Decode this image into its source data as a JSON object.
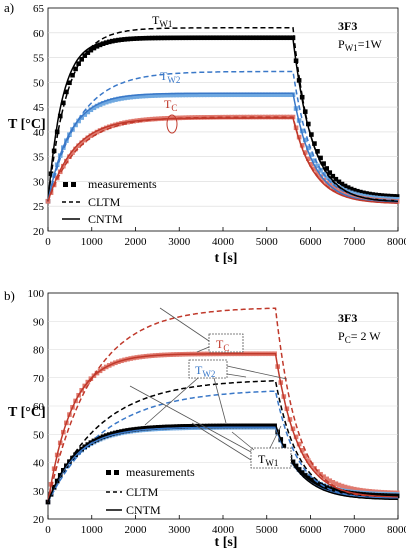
{
  "chart_data": [
    {
      "panel": "a)",
      "type": "line",
      "xlabel": "t [s]",
      "ylabel": "T [°C]",
      "xlim": [
        0,
        8000
      ],
      "ylim": [
        20,
        65
      ],
      "xticks": [
        0,
        1000,
        2000,
        3000,
        4000,
        5000,
        6000,
        7000,
        8000
      ],
      "yticks": [
        20,
        25,
        30,
        35,
        40,
        45,
        50,
        55,
        60,
        65
      ],
      "material": "3F3",
      "condition_main": "P",
      "condition_sub": "W1",
      "condition_value": "=1W",
      "legend": [
        "measurements",
        "CLTM",
        "CNTM"
      ],
      "curve_labels": [
        {
          "main": "T",
          "sub": "W1",
          "color": "#000000"
        },
        {
          "main": "T",
          "sub": "W2",
          "color": "#3a78c8"
        },
        {
          "main": "T",
          "sub": "C",
          "color": "#c0392b"
        }
      ],
      "series": [
        {
          "kind": "measurements",
          "color": "#000000",
          "start": 26,
          "end": 59,
          "tau": 380,
          "off": 5600,
          "final": 26.8,
          "tauc": 450
        },
        {
          "kind": "measurements",
          "color": "#6fa8e0",
          "start": 26,
          "end": 47.5,
          "tau": 500,
          "off": 5600,
          "final": 26.2,
          "tauc": 500
        },
        {
          "kind": "measurements",
          "color": "#e07a6f",
          "start": 26,
          "end": 43,
          "tau": 650,
          "off": 5600,
          "final": 25.8,
          "tauc": 520
        },
        {
          "kind": "CLTM",
          "color": "#000000",
          "start": 26,
          "end": 61,
          "tau": 450,
          "off": 5600,
          "final": 26,
          "tauc": 420
        },
        {
          "kind": "CLTM",
          "color": "#3a78c8",
          "start": 26,
          "end": 52.2,
          "tau": 700,
          "off": 5600,
          "final": 26,
          "tauc": 450
        },
        {
          "kind": "CLTM",
          "color": "#c0392b",
          "start": 26,
          "end": 43,
          "tau": 700,
          "off": 5600,
          "final": 25.6,
          "tauc": 480
        },
        {
          "kind": "CNTM",
          "color": "#000000",
          "start": 26,
          "end": 58.8,
          "tau": 330,
          "off": 5600,
          "final": 25.8,
          "tauc": 450
        },
        {
          "kind": "CNTM",
          "color": "#3a78c8",
          "start": 26,
          "end": 47.8,
          "tau": 500,
          "off": 5600,
          "final": 25.6,
          "tauc": 460
        },
        {
          "kind": "CNTM",
          "color": "#c0392b",
          "start": 26,
          "end": 42.8,
          "tau": 600,
          "off": 5600,
          "final": 25.5,
          "tauc": 480
        }
      ]
    },
    {
      "panel": "b)",
      "type": "line",
      "xlabel": "t [s]",
      "ylabel": "T [°C]",
      "xlim": [
        0,
        8000
      ],
      "ylim": [
        20,
        100
      ],
      "xticks": [
        0,
        1000,
        2000,
        3000,
        4000,
        5000,
        6000,
        7000,
        8000
      ],
      "yticks": [
        20,
        30,
        40,
        50,
        60,
        70,
        80,
        90,
        100
      ],
      "material": "3F3",
      "condition_main": "P",
      "condition_sub": "C",
      "condition_value": "= 2 W",
      "legend": [
        "measurements",
        "CLTM",
        "CNTM"
      ],
      "curve_labels": [
        {
          "main": "T",
          "sub": "C",
          "color": "#c0392b"
        },
        {
          "main": "T",
          "sub": "W2",
          "color": "#3a78c8"
        },
        {
          "main": "T",
          "sub": "W1",
          "color": "#000000"
        }
      ],
      "series": [
        {
          "kind": "measurements",
          "color": "#e07a6f",
          "start": 26,
          "end": 78.5,
          "tau": 550,
          "off": 5200,
          "final": 29,
          "tauc": 520
        },
        {
          "kind": "measurements",
          "color": "#6fa8e0",
          "start": 26,
          "end": 52.5,
          "tau": 650,
          "off": 5200,
          "final": 28.5,
          "tauc": 560
        },
        {
          "kind": "measurements",
          "color": "#000000",
          "start": 26,
          "end": 53,
          "tau": 650,
          "off": 5200,
          "final": 28,
          "tauc": 560
        },
        {
          "kind": "CLTM",
          "color": "#c0392b",
          "start": 26,
          "end": 95,
          "tau": 1000,
          "off": 5200,
          "final": 27,
          "tauc": 500
        },
        {
          "kind": "CLTM",
          "color": "#000000",
          "start": 26,
          "end": 69.5,
          "tau": 1200,
          "off": 5200,
          "final": 27,
          "tauc": 520
        },
        {
          "kind": "CLTM",
          "color": "#3a78c8",
          "start": 26,
          "end": 66,
          "tau": 1300,
          "off": 5200,
          "final": 27,
          "tauc": 520
        },
        {
          "kind": "CNTM",
          "color": "#c0392b",
          "start": 26,
          "end": 78.5,
          "tau": 550,
          "off": 5200,
          "final": 27.5,
          "tauc": 520
        },
        {
          "kind": "CNTM",
          "color": "#3a78c8",
          "start": 26,
          "end": 52.5,
          "tau": 650,
          "off": 5200,
          "final": 27.2,
          "tauc": 540
        },
        {
          "kind": "CNTM",
          "color": "#000000",
          "start": 26,
          "end": 53.5,
          "tau": 650,
          "off": 5200,
          "final": 26.8,
          "tauc": 540
        }
      ]
    }
  ]
}
